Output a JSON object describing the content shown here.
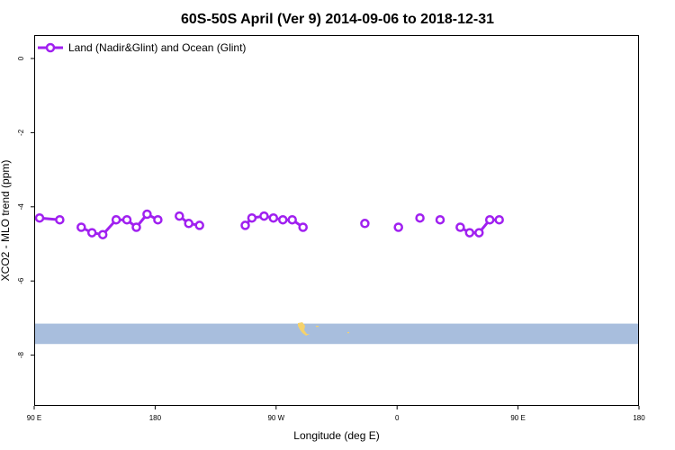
{
  "chart_data": {
    "type": "line",
    "title": "60S-50S April (Ver 9)   2014-09-06 to 2018-12-31",
    "xlabel": "Longitude (deg E)",
    "ylabel": "XCO2 - MLO trend (ppm)",
    "xlim": [
      90,
      450
    ],
    "ylim": [
      -9.3,
      0.6
    ],
    "x_ticks": [
      {
        "value": 90,
        "label": "90 E"
      },
      {
        "value": 180,
        "label": "180"
      },
      {
        "value": 270,
        "label": "90 W"
      },
      {
        "value": 360,
        "label": "0"
      },
      {
        "value": 450,
        "label": "90 E"
      },
      {
        "value": 540,
        "label": "180"
      }
    ],
    "y_ticks": [
      0,
      -2,
      -4,
      -6,
      -8
    ],
    "legend": {
      "label": "Land (Nadir&Glint) and Ocean (Glint)",
      "position": "top-left"
    },
    "series": [
      {
        "name": "Land (Nadir&Glint) and Ocean (Glint)",
        "color": "#a020f0",
        "points": [
          [
            94,
            -4.3
          ],
          [
            109,
            -4.35
          ],
          [
            125,
            -4.55
          ],
          [
            133,
            -4.7
          ],
          [
            141,
            -4.75
          ],
          [
            151,
            -4.35
          ],
          [
            159,
            -4.35
          ],
          [
            166,
            -4.55
          ],
          [
            174,
            -4.2
          ],
          [
            182,
            -4.35
          ],
          [
            198,
            -4.25
          ],
          [
            205,
            -4.45
          ],
          [
            213,
            -4.5
          ],
          [
            247,
            -4.5
          ],
          [
            252,
            -4.3
          ],
          [
            261,
            -4.25
          ],
          [
            268,
            -4.3
          ],
          [
            275,
            -4.35
          ],
          [
            282,
            -4.35
          ],
          [
            290,
            -4.55
          ],
          [
            336,
            -4.45
          ],
          [
            361,
            -4.55
          ],
          [
            377,
            -4.3
          ],
          [
            392,
            -4.35
          ],
          [
            407,
            -4.55
          ],
          [
            414,
            -4.7
          ],
          [
            421,
            -4.7
          ],
          [
            429,
            -4.35
          ],
          [
            436,
            -4.35
          ]
        ],
        "segments": [
          [
            0,
            1
          ],
          [
            2,
            9
          ],
          [
            10,
            12
          ],
          [
            13,
            19
          ],
          [
            20,
            20
          ],
          [
            21,
            21
          ],
          [
            22,
            22
          ],
          [
            23,
            23
          ],
          [
            24,
            28
          ]
        ]
      }
    ],
    "map_strip": {
      "y_range": [
        -7.15,
        -7.7
      ],
      "ocean_color": "#a8bedd",
      "land_color": "#f5d26b"
    }
  }
}
